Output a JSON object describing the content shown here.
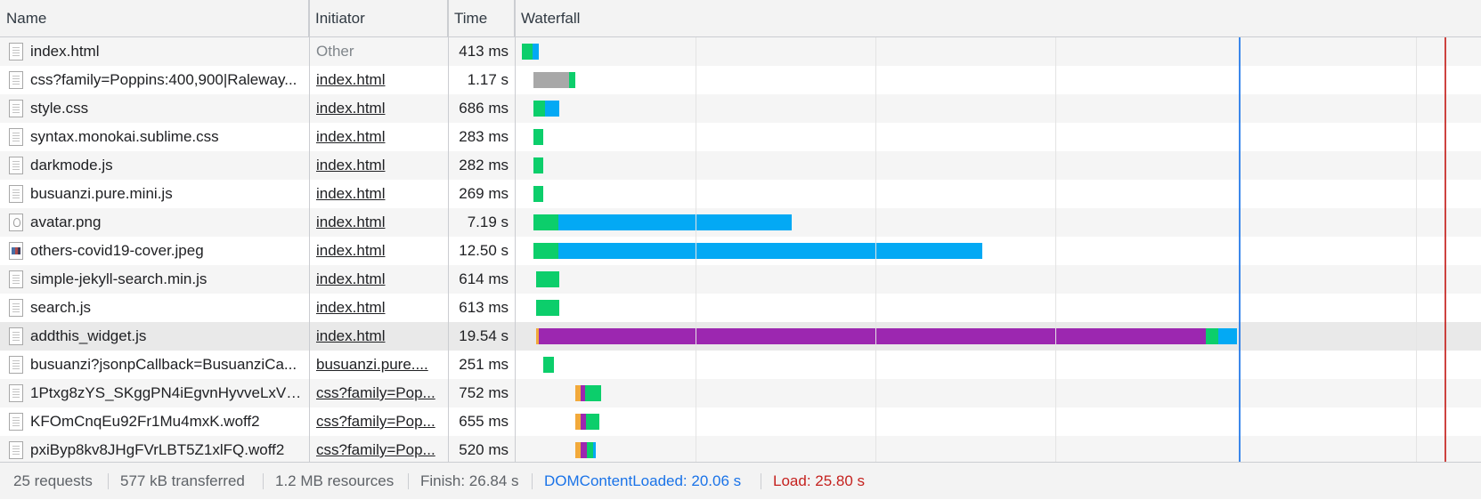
{
  "columns": {
    "name": "Name",
    "initiator": "Initiator",
    "time": "Time",
    "waterfall": "Waterfall"
  },
  "requests": [
    {
      "name": "index.html",
      "initiator": "Other",
      "initiator_link": false,
      "time": "413 ms",
      "icon": "document-icon"
    },
    {
      "name": "css?family=Poppins:400,900|Raleway...",
      "initiator": "index.html",
      "initiator_link": true,
      "time": "1.17 s",
      "icon": "document-icon"
    },
    {
      "name": "style.css",
      "initiator": "index.html",
      "initiator_link": true,
      "time": "686 ms",
      "icon": "document-icon"
    },
    {
      "name": "syntax.monokai.sublime.css",
      "initiator": "index.html",
      "initiator_link": true,
      "time": "283 ms",
      "icon": "document-icon"
    },
    {
      "name": "darkmode.js",
      "initiator": "index.html",
      "initiator_link": true,
      "time": "282 ms",
      "icon": "document-icon"
    },
    {
      "name": "busuanzi.pure.mini.js",
      "initiator": "index.html",
      "initiator_link": true,
      "time": "269 ms",
      "icon": "document-icon"
    },
    {
      "name": "avatar.png",
      "initiator": "index.html",
      "initiator_link": true,
      "time": "7.19 s",
      "icon": "avatar-image-icon"
    },
    {
      "name": "others-covid19-cover.jpeg",
      "initiator": "index.html",
      "initiator_link": true,
      "time": "12.50 s",
      "icon": "image-icon"
    },
    {
      "name": "simple-jekyll-search.min.js",
      "initiator": "index.html",
      "initiator_link": true,
      "time": "614 ms",
      "icon": "document-icon"
    },
    {
      "name": "search.js",
      "initiator": "index.html",
      "initiator_link": true,
      "time": "613 ms",
      "icon": "document-icon"
    },
    {
      "name": "addthis_widget.js",
      "initiator": "index.html",
      "initiator_link": true,
      "time": "19.54 s",
      "icon": "document-icon",
      "selected": true
    },
    {
      "name": "busuanzi?jsonpCallback=BusuanziCa...",
      "initiator": "busuanzi.pure....",
      "initiator_link": true,
      "time": "251 ms",
      "icon": "document-icon"
    },
    {
      "name": "1Ptxg8zYS_SKggPN4iEgvnHyvveLxVv...",
      "initiator": "css?family=Pop...",
      "initiator_link": true,
      "time": "752 ms",
      "icon": "font-file-icon"
    },
    {
      "name": "KFOmCnqEu92Fr1Mu4mxK.woff2",
      "initiator": "css?family=Pop...",
      "initiator_link": true,
      "time": "655 ms",
      "icon": "font-file-icon"
    },
    {
      "name": "pxiByp8kv8JHgFVrLBT5Z1xlFQ.woff2",
      "initiator": "css?family=Pop...",
      "initiator_link": true,
      "time": "520 ms",
      "icon": "font-file-icon"
    }
  ],
  "summary": {
    "requests": "25 requests",
    "transferred": "577 kB transferred",
    "resources": "1.2 MB resources",
    "finish": "Finish: 26.84 s",
    "dom_content_loaded": "DOMContentLoaded: 20.06 s",
    "load": "Load: 25.80 s"
  },
  "colors": {
    "waiting_ttfb": "#0cce6b",
    "content_download": "#03a9f4",
    "queueing": "#a8a8a8",
    "ssl": "#9c27b0",
    "dns": "#f2a93b",
    "dom_content_loaded_marker": "#1a73e8",
    "load_marker": "#c5221f"
  }
}
